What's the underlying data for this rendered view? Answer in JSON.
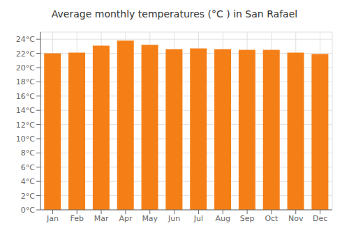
{
  "chart_data": {
    "type": "bar",
    "title": "Average monthly temperatures (°C ) in San Rafael",
    "categories": [
      "Jan",
      "Feb",
      "Mar",
      "Apr",
      "May",
      "Jun",
      "Jul",
      "Aug",
      "Sep",
      "Oct",
      "Nov",
      "Dec"
    ],
    "values": [
      22.0,
      22.1,
      23.1,
      23.8,
      23.2,
      22.6,
      22.7,
      22.6,
      22.5,
      22.5,
      22.1,
      21.9
    ],
    "color": "#F57F17",
    "ylim": [
      0,
      25
    ],
    "yticks": [
      {
        "value": 0,
        "label": "0°C"
      },
      {
        "value": 2,
        "label": "2°C"
      },
      {
        "value": 4,
        "label": "4°C"
      },
      {
        "value": 6,
        "label": "6°C"
      },
      {
        "value": 8,
        "label": "8°C"
      },
      {
        "value": 10,
        "label": "10°C"
      },
      {
        "value": 12,
        "label": "12°C"
      },
      {
        "value": 14,
        "label": "14°C"
      },
      {
        "value": 16,
        "label": "16°C"
      },
      {
        "value": 18,
        "label": "18°C"
      },
      {
        "value": 20,
        "label": "20°C"
      },
      {
        "value": 22,
        "label": "22°C"
      },
      {
        "value": 24,
        "label": "24°C"
      }
    ],
    "grid": true
  }
}
